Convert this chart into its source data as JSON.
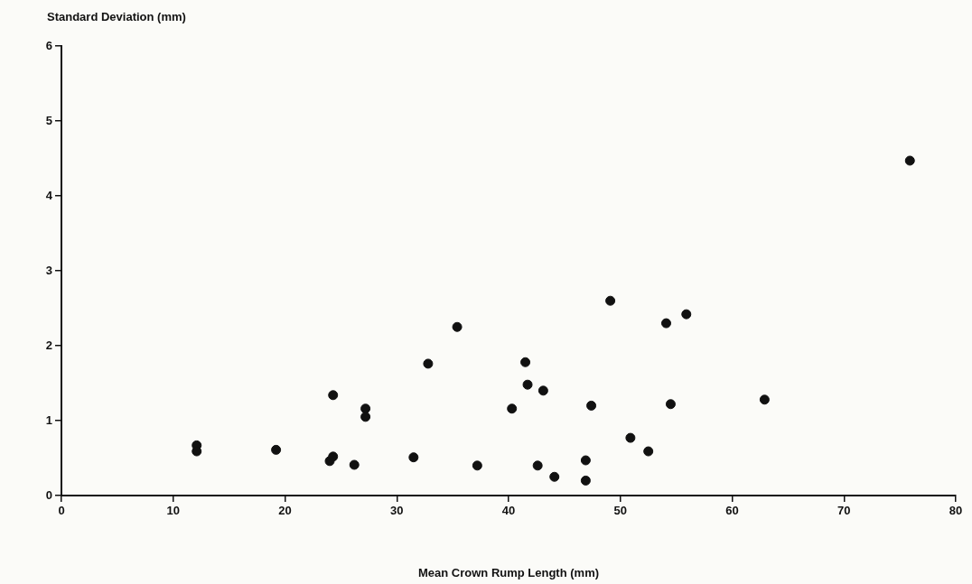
{
  "chart_data": {
    "type": "scatter",
    "xlabel": "Mean Crown Rump Length (mm)",
    "ylabel": "Standard Deviation (mm)",
    "xlim": [
      0,
      80
    ],
    "xticks": [
      0,
      10,
      20,
      30,
      40,
      50,
      60,
      70,
      80
    ],
    "ylim": [
      0,
      6
    ],
    "yticks": [
      0,
      1,
      2,
      3,
      4,
      5,
      6
    ],
    "grid": false,
    "legend": false,
    "marker": "circle",
    "series": [
      {
        "color": "#111111",
        "x": [
          12.1,
          12.1,
          19.2,
          24.0,
          24.3,
          24.3,
          26.2,
          27.2,
          27.2,
          31.5,
          32.8,
          35.4,
          37.2,
          40.3,
          41.5,
          41.7,
          42.6,
          43.1,
          44.1,
          46.9,
          46.9,
          47.4,
          49.1,
          50.9,
          52.5,
          54.1,
          54.5,
          55.9,
          62.9,
          75.9
        ],
        "values": [
          0.67,
          0.59,
          0.61,
          0.46,
          0.52,
          1.34,
          0.41,
          1.16,
          1.05,
          0.51,
          1.76,
          2.25,
          0.4,
          1.16,
          1.78,
          1.48,
          0.4,
          1.4,
          0.25,
          0.47,
          0.2,
          1.2,
          2.6,
          0.77,
          0.59,
          2.3,
          1.22,
          2.42,
          1.28,
          4.47
        ]
      }
    ]
  }
}
